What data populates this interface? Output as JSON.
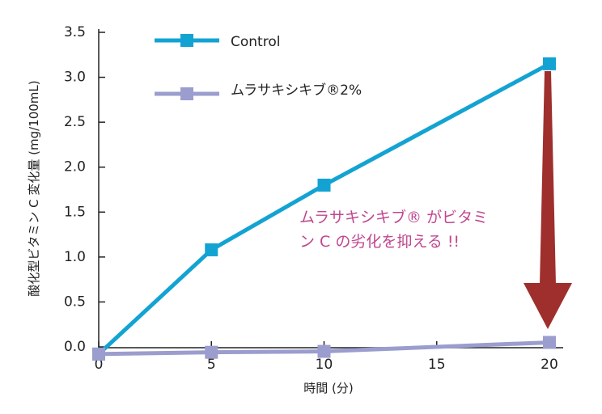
{
  "chart_data": {
    "type": "line",
    "xlabel": "時間 (分)",
    "ylabel": "酸化型ビタミン C 変化量 (mg/100mL)",
    "x_ticks": [
      "0",
      "5",
      "10",
      "15",
      "20"
    ],
    "y_ticks": [
      "0.0",
      "0.5",
      "1.0",
      "1.5",
      "2.0",
      "2.5",
      "3.0",
      "3.5"
    ],
    "xlim": [
      0,
      20
    ],
    "ylim": [
      0,
      3.5
    ],
    "grid": false,
    "legend_position": "top-left",
    "series": [
      {
        "name": "Control",
        "color": "#13a3d3",
        "x": [
          0,
          5,
          10,
          20
        ],
        "y": [
          -0.08,
          1.08,
          1.8,
          3.15
        ]
      },
      {
        "name": "ムラサキシキブ®2%",
        "color": "#9b9dce",
        "x": [
          0,
          5,
          10,
          20
        ],
        "y": [
          -0.08,
          -0.06,
          -0.05,
          0.05
        ]
      }
    ],
    "annotation": {
      "line1": "ムラサキシキブ® がビタミ",
      "line2": "ン C の劣化を抑える !!",
      "color": "#c0478f"
    },
    "arrow_color": "#9e2f2c"
  }
}
